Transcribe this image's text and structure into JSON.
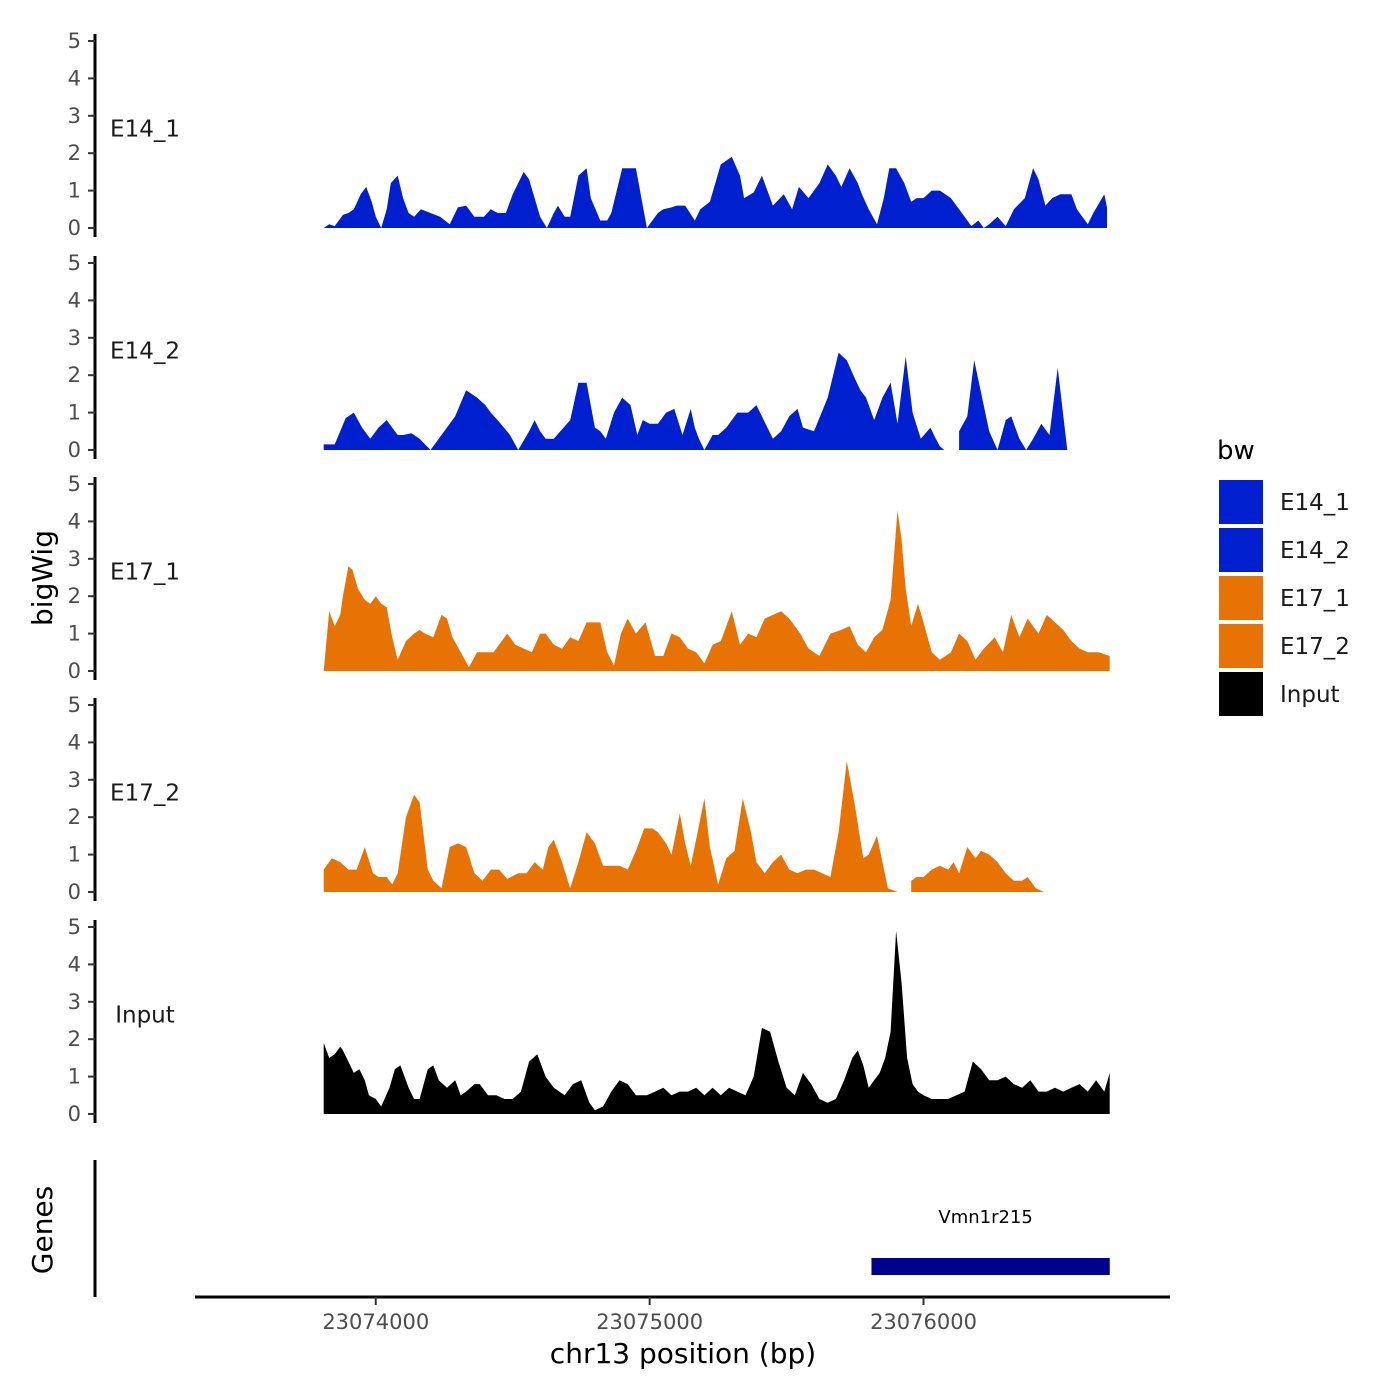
{
  "chart_data": {
    "type": "area",
    "y_axis_title": "bigWig",
    "genes_axis_title": "Genes",
    "x_axis_title": "chr13 position (bp)",
    "xlim": [
      23073340,
      23076900
    ],
    "x_ticks": [
      23074000,
      23075000,
      23076000
    ],
    "x_tick_labels": [
      "23074000",
      "23075000",
      "23076000"
    ],
    "ylim": [
      0,
      5
    ],
    "y_ticks": [
      0,
      1,
      2,
      3,
      4,
      5
    ],
    "y_tick_labels": [
      "0",
      "1",
      "2",
      "3",
      "4",
      "5"
    ],
    "legend": {
      "title": "bw",
      "position": "right",
      "entries": [
        {
          "label": "E14_1",
          "color": "#0020D0"
        },
        {
          "label": "E14_2",
          "color": "#0020D0"
        },
        {
          "label": "E17_1",
          "color": "#E87305"
        },
        {
          "label": "E17_2",
          "color": "#E87305"
        },
        {
          "label": "Input",
          "color": "#000000"
        }
      ]
    },
    "series": [
      {
        "name": "E14_1",
        "color": "#0020D0",
        "x": [
          23073810,
          23073830,
          23073850,
          23073880,
          23073900,
          23073920,
          23073945,
          23073965,
          23073985,
          23074000,
          23074020,
          23074040,
          23074055,
          23074080,
          23074100,
          23074120,
          23074140,
          23074165,
          23074200,
          23074235,
          23074270,
          23074300,
          23074330,
          23074360,
          23074395,
          23074420,
          23074445,
          23074475,
          23074500,
          23074540,
          23074560,
          23074600,
          23074625,
          23074650,
          23074665,
          23074690,
          23074710,
          23074740,
          23074770,
          23074785,
          23074820,
          23074845,
          23074860,
          23074900,
          23074930,
          23074950,
          23074990,
          23075030,
          23075050,
          23075080,
          23075100,
          23075130,
          23075165,
          23075185,
          23075220,
          23075260,
          23075300,
          23075330,
          23075345,
          23075380,
          23075410,
          23075450,
          23075490,
          23075520,
          23075545,
          23075580,
          23075620,
          23075650,
          23075680,
          23075700,
          23075730,
          23075760,
          23075775,
          23075800,
          23075830,
          23075855,
          23075875,
          23075900,
          23075930,
          23075955,
          23075975,
          23076000,
          23076030,
          23076060,
          23076100,
          23076130,
          23076175,
          23076200,
          23076220,
          23076240,
          23076270,
          23076300,
          23076330,
          23076370,
          23076400,
          23076420,
          23076445,
          23076470,
          23076500,
          23076540,
          23076560,
          23076600,
          23076620,
          23076660,
          23076670
        ],
        "y": [
          0,
          0.1,
          0.05,
          0.35,
          0.4,
          0.5,
          0.9,
          1.1,
          0.7,
          0.3,
          0,
          0.5,
          1.2,
          1.4,
          0.8,
          0.4,
          0.3,
          0.5,
          0.4,
          0.3,
          0.1,
          0.55,
          0.6,
          0.3,
          0.3,
          0.5,
          0.4,
          0.4,
          0.9,
          1.5,
          1.3,
          0.3,
          0,
          0.4,
          0.6,
          0.3,
          0.3,
          1.4,
          1.6,
          0.8,
          0.2,
          0.2,
          0.4,
          1.6,
          1.6,
          1.6,
          0,
          0.4,
          0.5,
          0.55,
          0.6,
          0.6,
          0.2,
          0.5,
          0.7,
          1.7,
          1.9,
          1.4,
          0.8,
          0.95,
          1.4,
          0.6,
          0.9,
          0.5,
          1.1,
          0.8,
          1.2,
          1.7,
          1.4,
          1.1,
          1.6,
          1.2,
          0.9,
          0.5,
          0.1,
          0.8,
          1.6,
          1.6,
          1.2,
          0.7,
          0.8,
          0.8,
          1.0,
          1.0,
          0.8,
          0.5,
          0.05,
          0.2,
          0,
          0.1,
          0.3,
          0.05,
          0.5,
          0.8,
          1.6,
          1.3,
          0.6,
          0.8,
          0.9,
          0.9,
          0.5,
          0.1,
          0.4,
          0.9,
          0.55
        ]
      },
      {
        "name": "E14_2",
        "color": "#0020D0",
        "x": [
          23073810,
          23073850,
          23073870,
          23073890,
          23073920,
          23073950,
          23073980,
          23074010,
          23074040,
          23074060,
          23074080,
          23074100,
          23074130,
          23074160,
          23074200,
          23074240,
          23074270,
          23074290,
          23074330,
          23074370,
          23074400,
          23074420,
          23074445,
          23074490,
          23074520,
          23074560,
          23074580,
          23074600,
          23074620,
          23074650,
          23074680,
          23074710,
          23074740,
          23074770,
          23074800,
          23074820,
          23074840,
          23074870,
          23074900,
          23074930,
          23074955,
          23074975,
          23075000,
          23075030,
          23075060,
          23075090,
          23075120,
          23075150,
          23075165,
          23075180,
          23075200,
          23075230,
          23075250,
          23075280,
          23075320,
          23075360,
          23075390,
          23075410,
          23075450,
          23075480,
          23075510,
          23075540,
          23075560,
          23075600,
          23075650,
          23075690,
          23075720,
          23075750,
          23075770,
          23075790,
          23075820,
          23075850,
          23075880,
          23075905,
          23075935,
          23075960,
          23075990,
          23076025,
          23076045,
          23076060,
          23076075,
          23076100,
          23076130,
          23076160,
          23076185,
          23076240,
          23076270,
          23076300,
          23076320,
          23076350,
          23076375,
          23076400,
          23076430,
          23076460,
          23076490,
          23076525,
          23076560,
          23076600,
          23076630,
          23076670
        ],
        "y": [
          0.15,
          0.15,
          0.5,
          0.85,
          1.0,
          0.6,
          0.3,
          0.6,
          0.8,
          0.6,
          0.4,
          0.4,
          0.45,
          0.3,
          0,
          0.4,
          0.7,
          0.9,
          1.6,
          1.4,
          1.2,
          1.0,
          0.8,
          0.4,
          0,
          0.5,
          0.8,
          0.5,
          0.3,
          0.3,
          0.55,
          0.8,
          1.8,
          1.8,
          0.6,
          0.5,
          0.3,
          1.0,
          1.4,
          1.2,
          0.4,
          0.8,
          0.7,
          0.7,
          1.0,
          1.1,
          0.4,
          1.1,
          0.6,
          0.3,
          0,
          0.4,
          0.4,
          0.6,
          1.0,
          1.0,
          1.2,
          0.9,
          0.3,
          0.5,
          0.9,
          1.1,
          0.6,
          0.5,
          1.4,
          2.6,
          2.4,
          1.9,
          1.6,
          1.4,
          0.8,
          1.4,
          1.8,
          0.7,
          2.5,
          1.0,
          0.3,
          0.6,
          0.3,
          0.1,
          0,
          0,
          0.5,
          0.9,
          2.4,
          0.5,
          0,
          0.8,
          0.9,
          0.3,
          0,
          0.3,
          0.7,
          0.4,
          2.2,
          0,
          0,
          0,
          0,
          0
        ]
      },
      {
        "name": "E17_1",
        "color": "#E87305",
        "x": [
          23073810,
          23073830,
          23073850,
          23073870,
          23073880,
          23073900,
          23073915,
          23073935,
          23073960,
          23073980,
          23074000,
          23074020,
          23074040,
          23074060,
          23074080,
          23074110,
          23074140,
          23074160,
          23074180,
          23074210,
          23074240,
          23074260,
          23074280,
          23074310,
          23074340,
          23074370,
          23074400,
          23074430,
          23074460,
          23074480,
          23074510,
          23074540,
          23074570,
          23074600,
          23074620,
          23074650,
          23074680,
          23074710,
          23074740,
          23074770,
          23074790,
          23074820,
          23074845,
          23074870,
          23074895,
          23074920,
          23074950,
          23074985,
          23075020,
          23075050,
          23075080,
          23075110,
          23075140,
          23075170,
          23075200,
          23075230,
          23075260,
          23075300,
          23075330,
          23075360,
          23075390,
          23075420,
          23075450,
          23075480,
          23075510,
          23075550,
          23075580,
          23075620,
          23075660,
          23075700,
          23075730,
          23075760,
          23075790,
          23075820,
          23075850,
          23075880,
          23075905,
          23075920,
          23075935,
          23075955,
          23075980,
          23076000,
          23076030,
          23076060,
          23076100,
          23076130,
          23076160,
          23076190,
          23076220,
          23076260,
          23076290,
          23076320,
          23076350,
          23076380,
          23076420,
          23076450,
          23076480,
          23076510,
          23076540,
          23076570,
          23076600,
          23076640,
          23076680
        ],
        "y": [
          0,
          1.6,
          1.2,
          1.5,
          2.0,
          2.8,
          2.7,
          2.2,
          1.9,
          1.8,
          2.0,
          1.8,
          1.7,
          0.9,
          0.3,
          0.8,
          1.0,
          1.1,
          1.0,
          0.9,
          1.5,
          1.4,
          0.9,
          0.5,
          0.1,
          0.5,
          0.5,
          0.5,
          0.8,
          1.0,
          0.7,
          0.6,
          0.5,
          1.0,
          1.0,
          0.7,
          0.6,
          0.9,
          0.8,
          1.3,
          1.3,
          1.3,
          0.5,
          0.15,
          1.0,
          1.4,
          1.0,
          1.3,
          0.4,
          0.4,
          1.0,
          0.9,
          0.6,
          0.5,
          0.2,
          0.7,
          0.8,
          1.6,
          0.7,
          1.0,
          0.9,
          1.4,
          1.5,
          1.6,
          1.4,
          1.0,
          0.6,
          0.4,
          1.0,
          1.1,
          1.2,
          0.7,
          0.5,
          0.9,
          1.1,
          1.9,
          4.3,
          3.5,
          2.2,
          1.2,
          1.8,
          1.3,
          0.5,
          0.3,
          0.5,
          1.0,
          0.8,
          0.3,
          0.6,
          0.9,
          0.5,
          1.5,
          0.9,
          1.4,
          1.0,
          1.5,
          1.3,
          1.1,
          0.8,
          0.6,
          0.5,
          0.5,
          0.4
        ]
      },
      {
        "name": "E17_2",
        "color": "#E87305",
        "x": [
          23073810,
          23073840,
          23073870,
          23073900,
          23073930,
          23073960,
          23073990,
          23074010,
          23074040,
          23074060,
          23074080,
          23074110,
          23074140,
          23074160,
          23074190,
          23074210,
          23074240,
          23074270,
          23074300,
          23074330,
          23074360,
          23074390,
          23074420,
          23074450,
          23074480,
          23074520,
          23074550,
          23074580,
          23074610,
          23074630,
          23074650,
          23074680,
          23074710,
          23074740,
          23074770,
          23074800,
          23074830,
          23074860,
          23074890,
          23074920,
          23074950,
          23074980,
          23075010,
          23075030,
          23075060,
          23075080,
          23075110,
          23075130,
          23075150,
          23075175,
          23075200,
          23075220,
          23075250,
          23075280,
          23075310,
          23075340,
          23075370,
          23075390,
          23075420,
          23075450,
          23075480,
          23075510,
          23075540,
          23075570,
          23075600,
          23075630,
          23075660,
          23075690,
          23075720,
          23075750,
          23075780,
          23075800,
          23075830,
          23075870,
          23075905,
          23075935,
          23075955,
          23075975,
          23076000,
          23076030,
          23076060,
          23076090,
          23076110,
          23076130,
          23076160,
          23076190,
          23076210,
          23076240,
          23076270,
          23076300,
          23076330,
          23076360,
          23076380,
          23076410,
          23076440,
          23076470,
          23076500,
          23076530,
          23076560,
          23076590,
          23076620,
          23076650,
          23076670
        ],
        "y": [
          0.6,
          0.9,
          0.8,
          0.6,
          0.6,
          1.2,
          0.5,
          0.4,
          0.4,
          0.2,
          0.5,
          2.0,
          2.6,
          2.4,
          0.6,
          0.3,
          0.1,
          1.2,
          1.3,
          1.2,
          0.5,
          0.3,
          0.6,
          0.6,
          0.35,
          0.5,
          0.5,
          0.8,
          0.6,
          1.2,
          1.4,
          0.8,
          0.1,
          0.8,
          1.6,
          1.3,
          0.7,
          0.7,
          0.7,
          0.6,
          1.1,
          1.7,
          1.7,
          1.6,
          1.3,
          1.0,
          2.1,
          1.3,
          0.7,
          1.6,
          2.5,
          1.2,
          0.2,
          0.9,
          1.1,
          2.5,
          1.6,
          0.8,
          0.5,
          0.8,
          1.0,
          0.6,
          0.5,
          0.6,
          0.6,
          0.5,
          0.4,
          1.6,
          3.5,
          2.3,
          0.9,
          1.0,
          1.5,
          0.1,
          0,
          0,
          0.3,
          0.4,
          0.4,
          0.6,
          0.7,
          0.6,
          0.8,
          0.5,
          1.2,
          0.9,
          1.1,
          1.0,
          0.8,
          0.5,
          0.3,
          0.3,
          0.4,
          0.1,
          0,
          0,
          0,
          0,
          0,
          0,
          0,
          0,
          0
        ]
      },
      {
        "name": "Input",
        "color": "#000000",
        "x": [
          23073810,
          23073830,
          23073850,
          23073870,
          23073880,
          23073900,
          23073920,
          23073940,
          23073960,
          23073975,
          23074000,
          23074020,
          23074050,
          23074070,
          23074090,
          23074120,
          23074140,
          23074160,
          23074190,
          23074210,
          23074230,
          23074260,
          23074290,
          23074310,
          23074330,
          23074360,
          23074380,
          23074410,
          23074440,
          23074470,
          23074500,
          23074530,
          23074560,
          23074590,
          23074620,
          23074650,
          23074690,
          23074720,
          23074750,
          23074780,
          23074800,
          23074830,
          23074860,
          23074890,
          23074920,
          23074950,
          23074990,
          23075020,
          23075050,
          23075080,
          23075110,
          23075140,
          23075170,
          23075200,
          23075230,
          23075260,
          23075290,
          23075320,
          23075350,
          23075380,
          23075410,
          23075440,
          23075470,
          23075500,
          23075530,
          23075560,
          23075590,
          23075620,
          23075650,
          23075680,
          23075710,
          23075740,
          23075760,
          23075780,
          23075800,
          23075820,
          23075840,
          23075860,
          23075880,
          23075900,
          23075920,
          23075940,
          23075960,
          23075980,
          23076000,
          23076030,
          23076060,
          23076090,
          23076120,
          23076150,
          23076180,
          23076210,
          23076240,
          23076270,
          23076300,
          23076330,
          23076360,
          23076390,
          23076420,
          23076450,
          23076480,
          23076510,
          23076540,
          23076570,
          23076600,
          23076630,
          23076660,
          23076680
        ],
        "y": [
          1.9,
          1.5,
          1.6,
          1.8,
          1.7,
          1.4,
          1.1,
          1.2,
          0.9,
          0.5,
          0.4,
          0.2,
          0.7,
          1.2,
          1.3,
          0.7,
          0.4,
          0.4,
          1.2,
          1.3,
          0.9,
          0.7,
          0.9,
          0.5,
          0.6,
          0.8,
          0.8,
          0.5,
          0.5,
          0.4,
          0.4,
          0.6,
          1.4,
          1.6,
          1.0,
          0.7,
          0.5,
          0.8,
          0.9,
          0.3,
          0.1,
          0.2,
          0.6,
          0.9,
          0.8,
          0.5,
          0.5,
          0.6,
          0.7,
          0.5,
          0.6,
          0.6,
          0.7,
          0.5,
          0.7,
          0.5,
          0.7,
          0.6,
          0.5,
          1.0,
          2.3,
          2.2,
          1.4,
          0.7,
          0.5,
          1.1,
          0.8,
          0.4,
          0.3,
          0.4,
          0.9,
          1.5,
          1.7,
          1.3,
          0.7,
          0.9,
          1.1,
          1.5,
          2.2,
          4.9,
          3.5,
          1.5,
          0.8,
          0.6,
          0.5,
          0.4,
          0.4,
          0.4,
          0.5,
          0.6,
          1.4,
          1.2,
          0.9,
          0.9,
          1.0,
          0.8,
          0.7,
          0.9,
          0.6,
          0.6,
          0.7,
          0.6,
          0.7,
          0.8,
          0.6,
          0.9,
          0.6,
          1.1
        ]
      }
    ],
    "genes": [
      {
        "name": "Vmn1r215",
        "start": 23075810,
        "end": 23076680,
        "color": "#000090"
      }
    ]
  }
}
